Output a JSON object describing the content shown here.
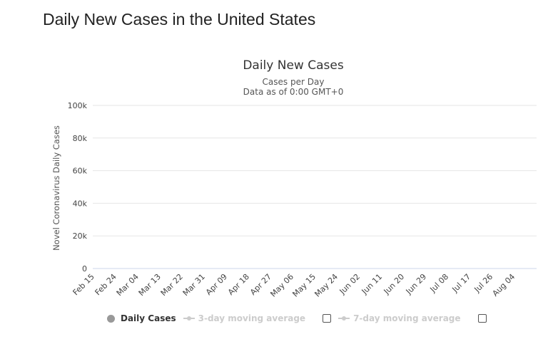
{
  "page": {
    "title": "Daily New Cases in the United States"
  },
  "legend": {
    "daily": "Daily Cases",
    "ma3": "3-day moving average",
    "ma7": "7-day moving average",
    "daily_color": "#999999",
    "inactive_color": "#cccccc"
  },
  "chart_data": {
    "type": "bar",
    "title": "Daily New Cases",
    "subtitle_lines": [
      "Cases per Day",
      "Data as of 0:00 GMT+0"
    ],
    "xlabel": "",
    "ylabel": "Novel Coronavirus Daily Cases",
    "ylim": [
      0,
      100000
    ],
    "yticks": [
      0,
      20000,
      40000,
      60000,
      80000,
      100000
    ],
    "ytick_labels": [
      "0",
      "20k",
      "40k",
      "60k",
      "80k",
      "100k"
    ],
    "x_start": "Feb 15",
    "xtick_labels": [
      "Feb 15",
      "Feb 24",
      "Mar 04",
      "Mar 13",
      "Mar 22",
      "Mar 31",
      "Apr 09",
      "Apr 18",
      "Apr 27",
      "May 06",
      "May 15",
      "May 24",
      "Jun 02",
      "Jun 11",
      "Jun 20",
      "Jun 29",
      "Jul 08",
      "Jul 17",
      "Jul 26",
      "Aug 04"
    ],
    "grid": true,
    "bar_color": "#999999",
    "series": [
      {
        "name": "Daily Cases",
        "values": [
          0,
          0,
          0,
          0,
          0,
          0,
          0,
          0,
          0,
          0,
          0,
          0,
          0,
          0,
          0,
          0,
          0,
          0,
          0,
          0,
          0,
          0,
          0,
          0,
          0,
          0,
          0,
          0,
          0,
          0,
          0,
          0,
          0,
          0,
          0,
          0,
          0,
          0,
          0,
          0,
          0,
          0,
          0,
          0,
          0,
          0,
          0,
          0,
          0,
          0,
          0,
          0,
          0,
          0,
          0,
          0,
          0,
          0,
          0,
          0,
          0,
          0,
          0,
          0,
          0,
          0,
          0,
          0,
          0,
          0,
          0,
          0,
          0,
          0,
          0,
          0,
          0,
          0,
          0,
          0,
          0,
          0,
          0,
          0,
          0,
          0,
          0,
          0,
          0,
          0,
          0,
          0,
          0,
          0,
          0,
          0,
          0,
          0,
          0,
          0,
          0,
          0,
          0,
          0,
          0,
          0,
          0,
          0,
          0,
          0,
          0,
          0,
          0,
          0,
          0,
          0,
          0,
          0,
          0,
          0,
          0,
          0,
          0,
          0,
          0,
          0,
          0,
          0,
          0,
          0,
          0,
          0,
          0,
          0,
          0,
          0,
          0,
          0,
          0,
          0,
          0,
          0,
          0,
          0,
          0,
          0,
          0,
          0,
          0,
          0,
          0,
          0,
          0,
          0,
          0,
          0,
          0,
          0,
          0,
          0,
          0,
          0,
          0,
          0,
          0,
          0,
          0,
          0,
          0,
          0,
          0,
          0,
          0,
          0,
          0,
          0
        ]
      }
    ]
  }
}
